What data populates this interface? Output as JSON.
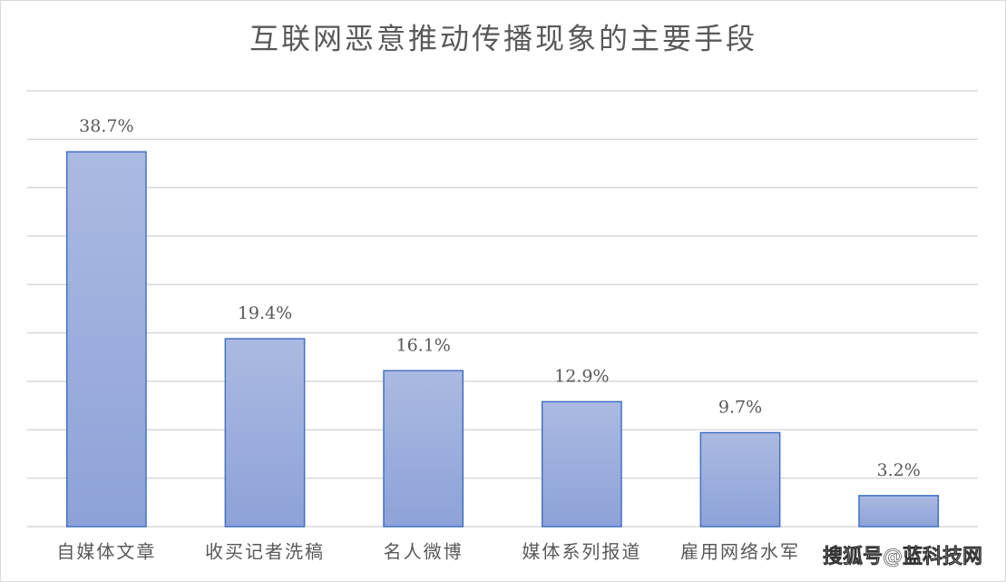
{
  "chart_data": {
    "type": "bar",
    "title": "互联网恶意推动传播现象的主要手段",
    "categories": [
      "自媒体文章",
      "收买记者洗稿",
      "名人微博",
      "媒体系列报道",
      "雇用网络水军",
      null
    ],
    "values": [
      38.7,
      19.4,
      16.1,
      12.9,
      9.7,
      3.2
    ],
    "value_labels": [
      "38.7%",
      "19.4%",
      "16.1%",
      "12.9%",
      "9.7%",
      "3.2%"
    ],
    "color": "#4472c4",
    "ylim": [
      0,
      45
    ],
    "yticks": [
      0,
      5,
      10,
      15,
      20,
      25,
      30,
      35,
      40,
      45
    ],
    "grid": true
  },
  "watermark": "搜狐号@蓝科技网"
}
